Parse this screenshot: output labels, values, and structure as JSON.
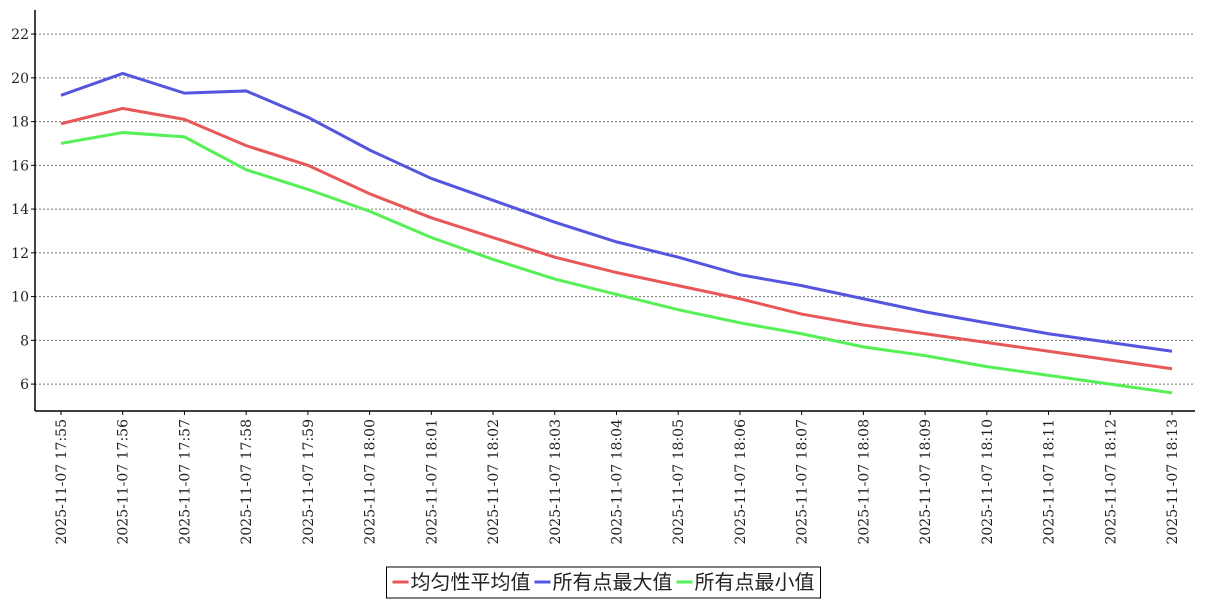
{
  "chart_data": {
    "type": "line",
    "categories": [
      "2025-11-07 17:55",
      "2025-11-07 17:56",
      "2025-11-07 17:57",
      "2025-11-07 17:58",
      "2025-11-07 17:59",
      "2025-11-07 18:00",
      "2025-11-07 18:01",
      "2025-11-07 18:02",
      "2025-11-07 18:03",
      "2025-11-07 18:04",
      "2025-11-07 18:05",
      "2025-11-07 18:06",
      "2025-11-07 18:07",
      "2025-11-07 18:08",
      "2025-11-07 18:09",
      "2025-11-07 18:10",
      "2025-11-07 18:11",
      "2025-11-07 18:12",
      "2025-11-07 18:13"
    ],
    "series": [
      {
        "name": "均匀性平均值",
        "color": "#e85858",
        "values": [
          17.9,
          18.6,
          18.1,
          16.9,
          16.0,
          14.7,
          13.6,
          12.7,
          11.8,
          11.1,
          10.5,
          9.9,
          9.2,
          8.7,
          8.3,
          7.9,
          7.5,
          7.1,
          6.7
        ]
      },
      {
        "name": "所有点最大值",
        "color": "#5555e0",
        "values": [
          19.2,
          20.2,
          19.3,
          19.4,
          18.2,
          16.7,
          15.4,
          14.4,
          13.4,
          12.5,
          11.8,
          11.0,
          10.5,
          9.9,
          9.3,
          8.8,
          8.3,
          7.9,
          7.5
        ]
      },
      {
        "name": "所有点最小值",
        "color": "#55f055",
        "values": [
          17.0,
          17.5,
          17.3,
          15.8,
          14.9,
          13.9,
          12.7,
          11.7,
          10.8,
          10.1,
          9.4,
          8.8,
          8.3,
          7.7,
          7.3,
          6.8,
          6.4,
          6.0,
          5.6
        ]
      }
    ],
    "ylim": [
      4.77,
      23.1
    ],
    "yticks": [
      6,
      8,
      10,
      12,
      14,
      16,
      18,
      20,
      22
    ],
    "grid": true,
    "legend": "bottom"
  }
}
